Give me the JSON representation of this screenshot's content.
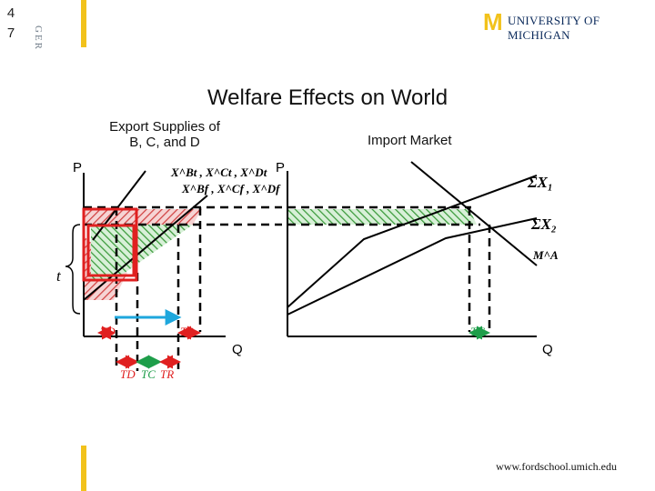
{
  "slide_number": [
    "4",
    "7"
  ],
  "side_tag": "GER",
  "logo": {
    "mark": "M",
    "text": "UNIVERSITY OF MICHIGAN"
  },
  "title": "Welfare Effects on World",
  "left_panel": {
    "heading_line1": "Export Supplies of",
    "heading_line2": "B, C, and D",
    "axis_p": "P",
    "axis_q": "Q",
    "supply_label_top": "X^Bt , X^Ct , X^Dt",
    "supply_label_bottom": "X^Bf , X^Cf , X^Df",
    "tariff_label": "t",
    "area_labels": {
      "td": "TD",
      "tr": "TR"
    },
    "bottom_legend": {
      "td": "TD",
      "tc": "TC",
      "tr": "TR"
    }
  },
  "right_panel": {
    "heading": "Import Market",
    "axis_p": "P",
    "axis_q": "Q",
    "curve_labels": {
      "sum_x1": "ΣX₁",
      "sum_x2": "ΣX₂",
      "ma": "M^A"
    },
    "area_labels": {
      "tc": "TC"
    }
  },
  "colors": {
    "gold": "#f2c21b",
    "navy": "#0b2a5b",
    "red": "#e02020",
    "green": "#1e9e4a",
    "cyan": "#1ea7dd",
    "hatch_red": "#d04040",
    "hatch_green": "#3a9a3a"
  },
  "footer_url": "www.fordschool.umich.edu"
}
